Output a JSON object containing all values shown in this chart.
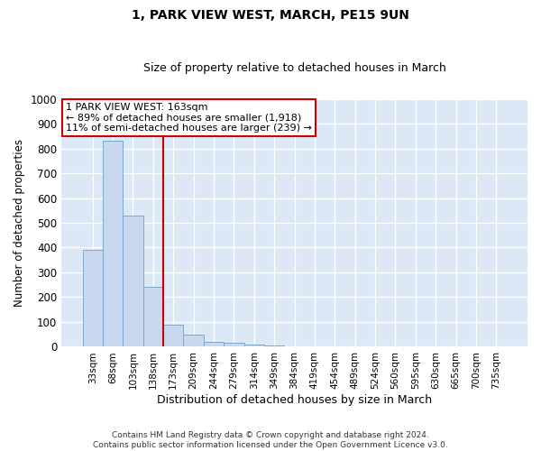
{
  "title1": "1, PARK VIEW WEST, MARCH, PE15 9UN",
  "title2": "Size of property relative to detached houses in March",
  "xlabel": "Distribution of detached houses by size in March",
  "ylabel": "Number of detached properties",
  "bar_labels": [
    "33sqm",
    "68sqm",
    "103sqm",
    "138sqm",
    "173sqm",
    "209sqm",
    "244sqm",
    "279sqm",
    "314sqm",
    "349sqm",
    "384sqm",
    "419sqm",
    "454sqm",
    "489sqm",
    "524sqm",
    "560sqm",
    "595sqm",
    "630sqm",
    "665sqm",
    "700sqm",
    "735sqm"
  ],
  "bar_values": [
    390,
    830,
    530,
    240,
    90,
    50,
    20,
    15,
    10,
    7,
    0,
    0,
    0,
    0,
    0,
    0,
    0,
    0,
    0,
    0,
    0
  ],
  "bar_color": "#c8d8ee",
  "bar_edge_color": "#7aa8cc",
  "vline_x_index": 4,
  "vline_color": "#cc0000",
  "annotation_text": "1 PARK VIEW WEST: 163sqm\n← 89% of detached houses are smaller (1,918)\n11% of semi-detached houses are larger (239) →",
  "annotation_box_color": "#ffffff",
  "annotation_box_edge": "#cc0000",
  "ylim": [
    0,
    1000
  ],
  "yticks": [
    0,
    100,
    200,
    300,
    400,
    500,
    600,
    700,
    800,
    900,
    1000
  ],
  "footnote1": "Contains HM Land Registry data © Crown copyright and database right 2024.",
  "footnote2": "Contains public sector information licensed under the Open Government Licence v3.0.",
  "fig_bg_color": "#ffffff",
  "plot_bg_color": "#dce8f5",
  "grid_color": "#ffffff"
}
